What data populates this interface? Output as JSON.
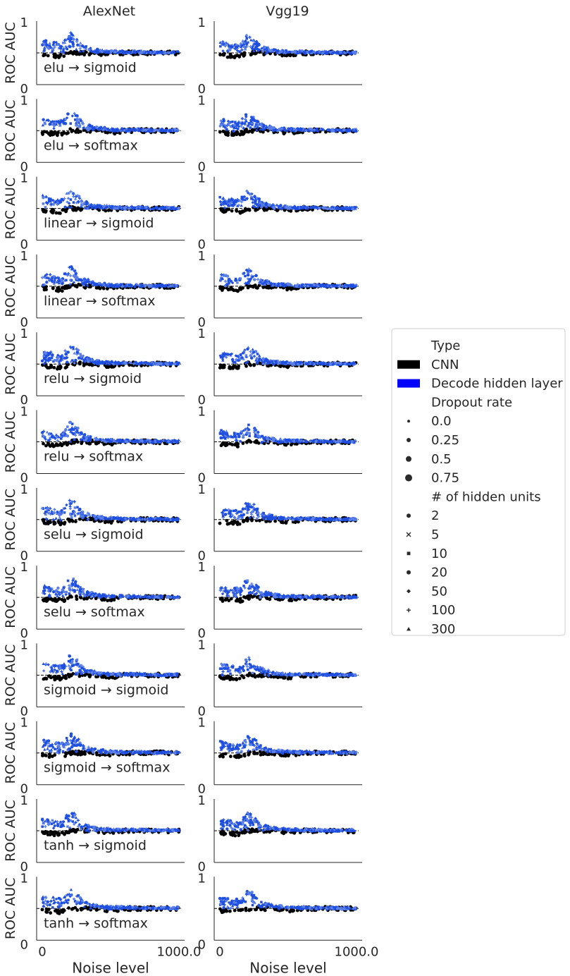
{
  "chart_data": {
    "type": "scatter",
    "columns": [
      "AlexNet",
      "Vgg19"
    ],
    "rows": [
      "elu → sigmoid",
      "elu → softmax",
      "linear → sigmoid",
      "linear → softmax",
      "relu → sigmoid",
      "relu → softmax",
      "selu → sigmoid",
      "selu → softmax",
      "sigmoid → sigmoid",
      "sigmoid → softmax",
      "tanh → sigmoid",
      "tanh → softmax"
    ],
    "xlabel": "Noise level",
    "ylabel": "ROC AUC",
    "xlim": [
      0,
      1000
    ],
    "ylim": [
      0,
      1
    ],
    "xticks": [
      "0",
      "1000.0"
    ],
    "yticks": [
      "0",
      "1"
    ],
    "chance_level": 0.5,
    "legend": {
      "placement": "right",
      "type_title": "Type",
      "types": [
        {
          "label": "CNN",
          "color": "#000000"
        },
        {
          "label": "Decode hidden layer",
          "color": "#0000ff"
        }
      ],
      "dropout_title": "Dropout rate",
      "dropout_rates": [
        "0.0",
        "0.25",
        "0.5",
        "0.75"
      ],
      "units_title": "# of hidden units",
      "hidden_units": [
        {
          "label": "2",
          "marker": "circle"
        },
        {
          "label": "5",
          "marker": "x"
        },
        {
          "label": "10",
          "marker": "square"
        },
        {
          "label": "20",
          "marker": "circle"
        },
        {
          "label": "50",
          "marker": "diamond"
        },
        {
          "label": "100",
          "marker": "plus"
        },
        {
          "label": "300",
          "marker": "triangle"
        }
      ]
    },
    "series": [
      {
        "name": "CNN",
        "x": [
          0,
          50,
          100,
          150,
          200,
          300,
          400,
          500,
          600,
          700,
          800,
          900,
          1000
        ],
        "values": [
          0.47,
          0.46,
          0.45,
          0.45,
          0.5,
          0.5,
          0.5,
          0.47,
          0.5,
          0.5,
          0.5,
          0.5,
          0.5
        ]
      },
      {
        "name": "Decode hidden layer",
        "x": [
          0,
          50,
          100,
          150,
          200,
          250,
          300,
          400,
          500,
          600,
          700,
          800,
          900,
          1000
        ],
        "values": [
          0.7,
          0.68,
          0.66,
          0.65,
          0.82,
          0.75,
          0.62,
          0.55,
          0.53,
          0.52,
          0.52,
          0.51,
          0.51,
          0.51
        ]
      }
    ]
  }
}
